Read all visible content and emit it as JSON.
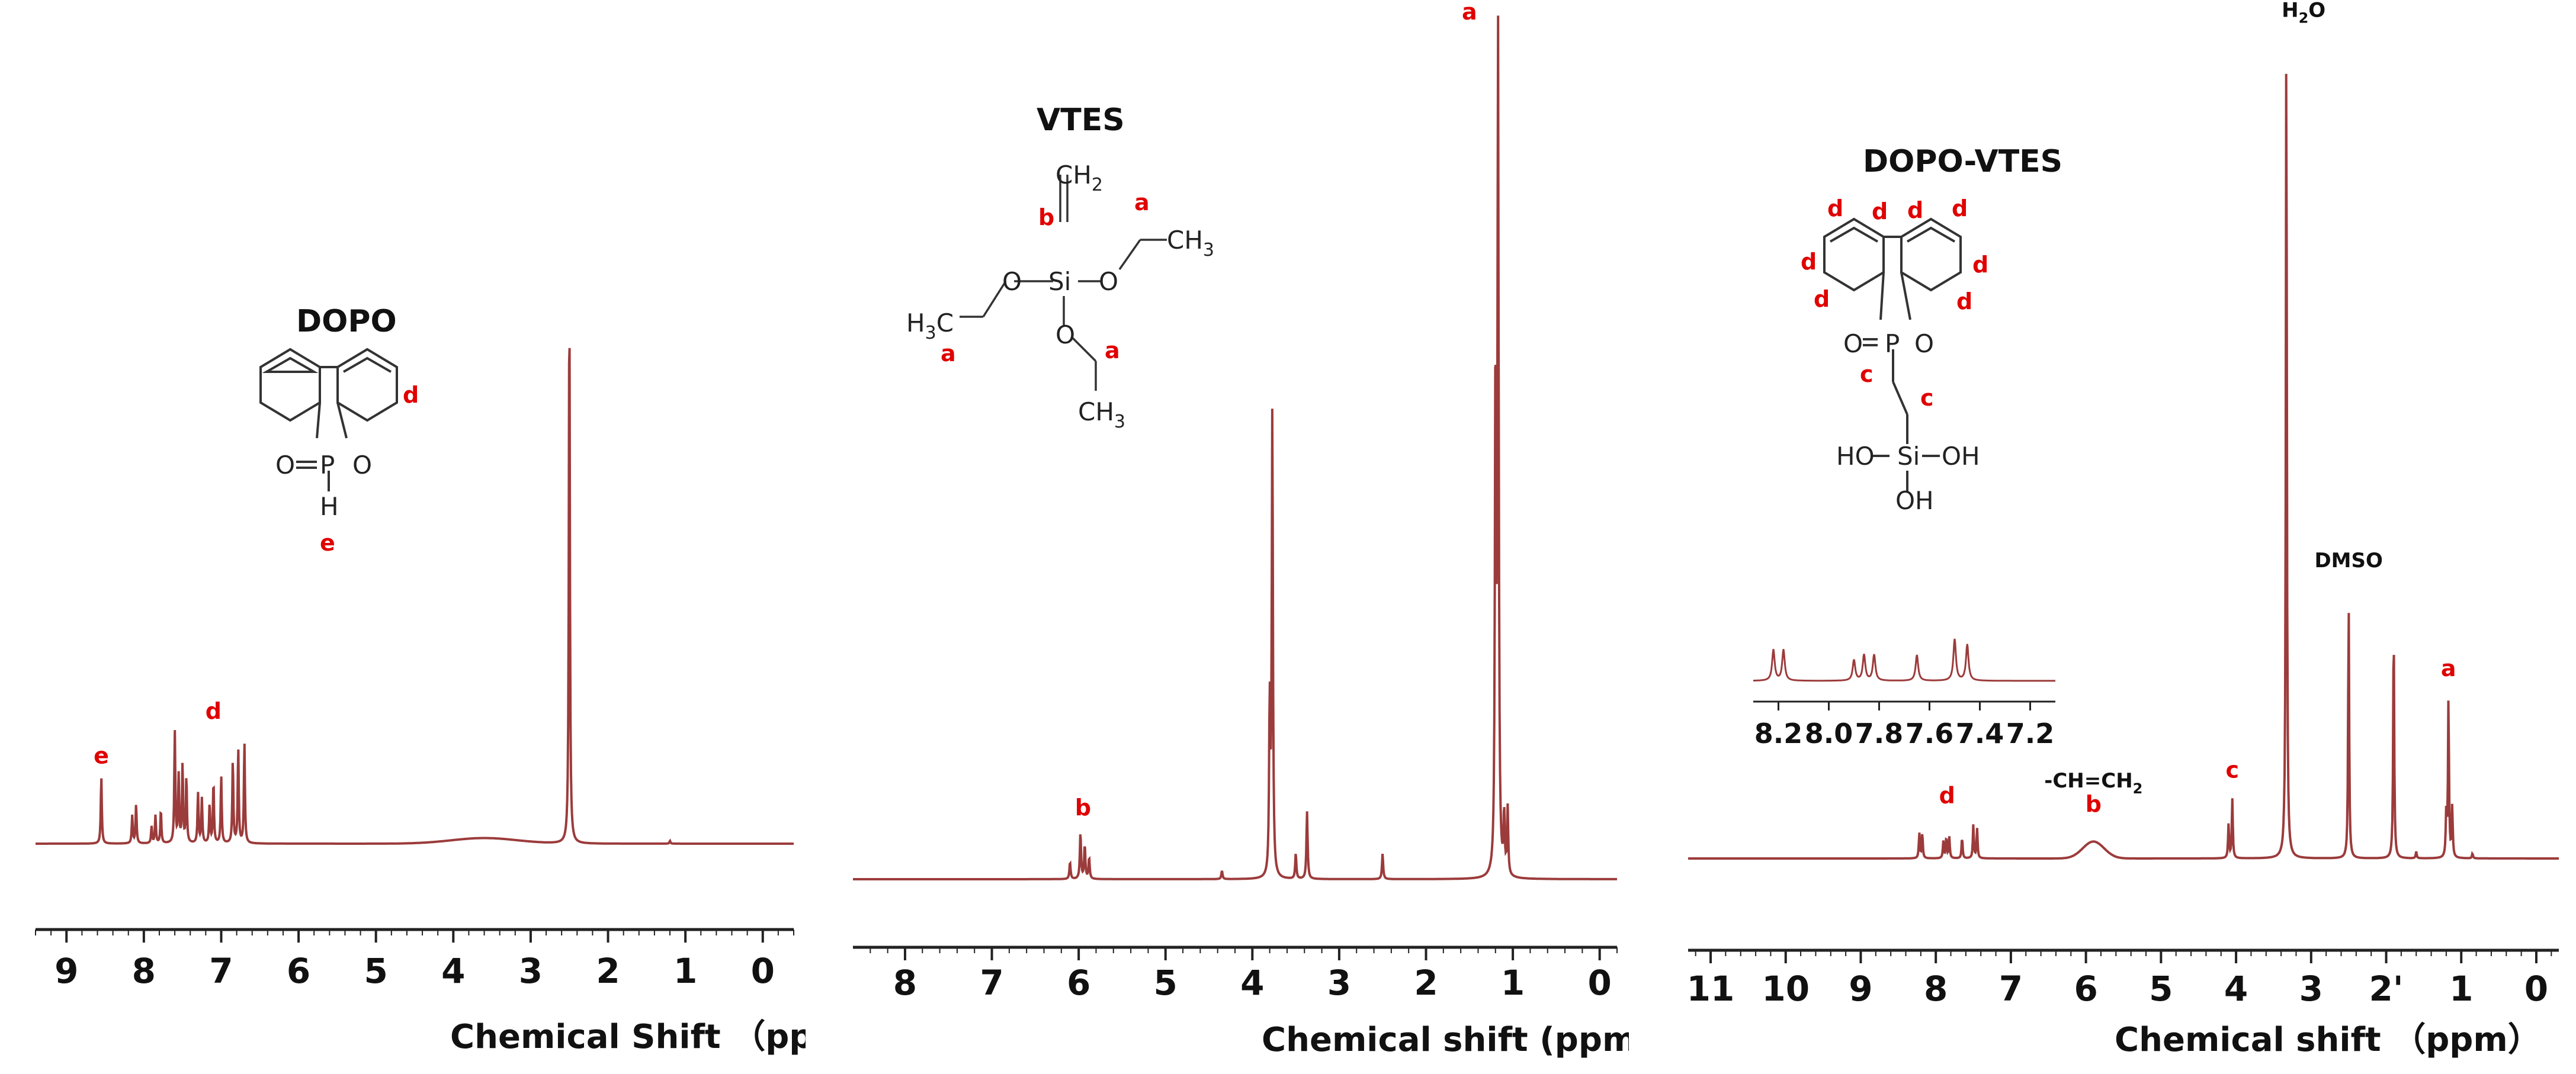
{
  "colors": {
    "spectrum": "#9c3b3b",
    "peak_label": "#e00000",
    "axis": "#222222"
  },
  "chart_data": [
    {
      "type": "line",
      "title": "",
      "xlabel": "Chemical Shift （ppm)",
      "ylabel": "",
      "xlim": [
        9.4,
        -0.4
      ],
      "x_reversed": true,
      "x_ticks": [
        9,
        8,
        7,
        6,
        5,
        4,
        3,
        2,
        1,
        0
      ],
      "ylim": [
        0,
        1.0
      ],
      "peaks": [
        {
          "x": 8.55,
          "y": 0.12
        },
        {
          "x": 8.15,
          "y": 0.05
        },
        {
          "x": 8.1,
          "y": 0.07
        },
        {
          "x": 7.9,
          "y": 0.03
        },
        {
          "x": 7.85,
          "y": 0.05
        },
        {
          "x": 7.78,
          "y": 0.06
        },
        {
          "x": 7.6,
          "y": 0.2
        },
        {
          "x": 7.55,
          "y": 0.12
        },
        {
          "x": 7.5,
          "y": 0.14
        },
        {
          "x": 7.45,
          "y": 0.12
        },
        {
          "x": 7.3,
          "y": 0.09
        },
        {
          "x": 7.25,
          "y": 0.08
        },
        {
          "x": 7.15,
          "y": 0.07
        },
        {
          "x": 7.1,
          "y": 0.11
        },
        {
          "x": 7.0,
          "y": 0.12
        },
        {
          "x": 6.85,
          "y": 0.15
        },
        {
          "x": 6.78,
          "y": 0.17
        },
        {
          "x": 6.7,
          "y": 0.18
        },
        {
          "x": 2.5,
          "y": 1.0
        },
        {
          "x": 1.2,
          "y": 0.005
        }
      ],
      "broad": [
        {
          "x": 3.6,
          "y": 0.01,
          "w": 0.6
        }
      ],
      "labels": [
        {
          "text": "e",
          "x": 8.55,
          "y": 0.12
        },
        {
          "text": "d",
          "x": 7.1,
          "y": 0.2
        }
      ],
      "structure": {
        "title": "DOPO",
        "atoms": {
          "o_ring": "O",
          "o_double": "O",
          "p": "P",
          "h": "H"
        },
        "labels": {
          "d": "d",
          "e": "e"
        }
      }
    },
    {
      "type": "line",
      "title": "",
      "xlabel": "Chemical shift (ppm)",
      "ylabel": "",
      "xlim": [
        8.6,
        -0.2
      ],
      "x_reversed": true,
      "x_ticks": [
        8,
        7,
        6,
        5,
        4,
        3,
        2,
        1,
        0
      ],
      "ylim": [
        0,
        1.0
      ],
      "peaks": [
        {
          "x": 6.1,
          "y": 0.02
        },
        {
          "x": 5.98,
          "y": 0.055
        },
        {
          "x": 5.93,
          "y": 0.04
        },
        {
          "x": 5.88,
          "y": 0.025
        },
        {
          "x": 4.35,
          "y": 0.01
        },
        {
          "x": 3.8,
          "y": 0.2
        },
        {
          "x": 3.77,
          "y": 0.55
        },
        {
          "x": 3.5,
          "y": 0.03
        },
        {
          "x": 3.37,
          "y": 0.08
        },
        {
          "x": 2.5,
          "y": 0.03
        },
        {
          "x": 1.2,
          "y": 0.6
        },
        {
          "x": 1.17,
          "y": 1.0
        },
        {
          "x": 1.1,
          "y": 0.07
        },
        {
          "x": 1.06,
          "y": 0.08
        }
      ],
      "broad": [],
      "labels": [
        {
          "text": "b",
          "x": 5.95,
          "y": 0.06
        },
        {
          "text": "a",
          "x": 1.5,
          "y": 1.0
        }
      ],
      "structure": {
        "title": "VTES",
        "atoms": {
          "si": "Si",
          "o_left": "O",
          "o_right": "O",
          "o_down": "O"
        },
        "groups": {
          "ch2": "CH",
          "ch3": "CH",
          "h3c": "H",
          "h3c_tail": "C",
          "sub": "2",
          "sub3": "3"
        },
        "labels": {
          "a": "a",
          "b": "b"
        }
      }
    },
    {
      "type": "line",
      "title": "",
      "xlabel": "Chemical shift （ppm）",
      "ylabel": "",
      "xlim": [
        11.3,
        -0.3
      ],
      "x_reversed": true,
      "x_ticks": [
        11,
        10,
        9,
        8,
        7,
        6,
        5,
        4,
        3,
        2,
        1,
        0
      ],
      "x_tick_labels": [
        "11",
        "10",
        "9",
        "8",
        "7",
        "6",
        "5",
        "4",
        "3",
        "2'",
        "1",
        "0"
      ],
      "ylim": [
        0,
        1.0
      ],
      "peaks": [
        {
          "x": 8.22,
          "y": 0.03
        },
        {
          "x": 8.18,
          "y": 0.03
        },
        {
          "x": 7.9,
          "y": 0.02
        },
        {
          "x": 7.86,
          "y": 0.025
        },
        {
          "x": 7.82,
          "y": 0.025
        },
        {
          "x": 7.65,
          "y": 0.025
        },
        {
          "x": 7.5,
          "y": 0.04
        },
        {
          "x": 7.45,
          "y": 0.035
        },
        {
          "x": 4.1,
          "y": 0.04
        },
        {
          "x": 4.05,
          "y": 0.07
        },
        {
          "x": 3.33,
          "y": 1.0
        },
        {
          "x": 2.5,
          "y": 0.3
        },
        {
          "x": 1.9,
          "y": 0.28
        },
        {
          "x": 1.6,
          "y": 0.008
        },
        {
          "x": 1.2,
          "y": 0.05
        },
        {
          "x": 1.17,
          "y": 0.19
        },
        {
          "x": 1.12,
          "y": 0.06
        },
        {
          "x": 0.85,
          "y": 0.006
        }
      ],
      "broad": [
        {
          "x": 5.9,
          "y": 0.02,
          "w": 0.2
        }
      ],
      "labels": [
        {
          "text": "d",
          "x": 7.85,
          "y": 0.05
        },
        {
          "text": "b",
          "x": 5.9,
          "y": 0.04
        },
        {
          "text": "c",
          "x": 4.05,
          "y": 0.08
        },
        {
          "text": "a",
          "x": 1.17,
          "y": 0.2
        }
      ],
      "annotations": [
        {
          "text": "-CH=CH",
          "sub": "2",
          "x": 5.9,
          "y": 0.07
        },
        {
          "text": "H",
          "sub": "2",
          "tail": "O",
          "x": 3.1,
          "y": 0.98
        },
        {
          "text": "DMSO",
          "x": 2.5,
          "y": 0.33
        }
      ],
      "inset": {
        "x_ticks": [
          8.2,
          8.0,
          7.8,
          7.6,
          7.4,
          7.2
        ],
        "x_tick_labels": [
          "8.2",
          "8.0",
          "7.8",
          "7.6",
          "7.4",
          "7.2"
        ],
        "xlim": [
          8.3,
          7.1
        ]
      },
      "structure": {
        "title": "DOPO-VTES",
        "atoms": {
          "o_ring": "O",
          "o_double": "O",
          "p": "P",
          "si": "Si",
          "oh1": "HO",
          "oh2": "OH",
          "oh3": "OH"
        },
        "labels": {
          "d": "d",
          "c": "c"
        }
      }
    }
  ]
}
